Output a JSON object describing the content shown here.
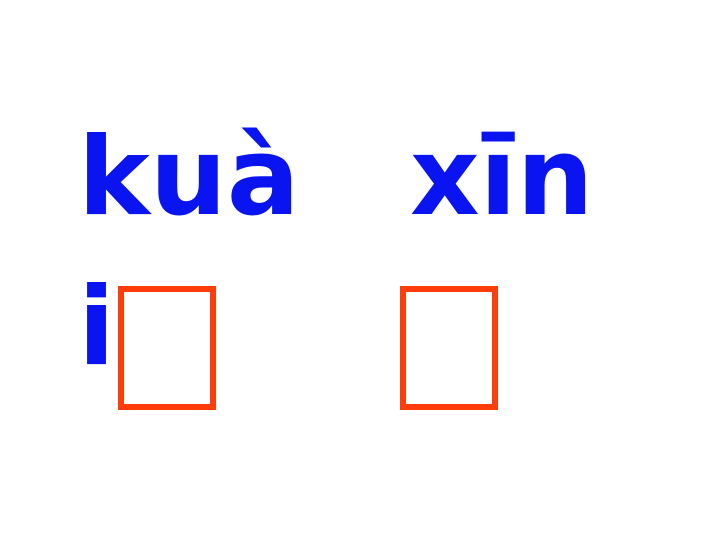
{
  "slide": {
    "syllables": [
      "kuà",
      "xīn"
    ],
    "second_line_text": "i",
    "character_boxes": [
      "□",
      "□"
    ],
    "colors": {
      "pinyin": "#0a14f0",
      "box_outline": "#ff3d0a",
      "background": "#ffffff"
    }
  }
}
